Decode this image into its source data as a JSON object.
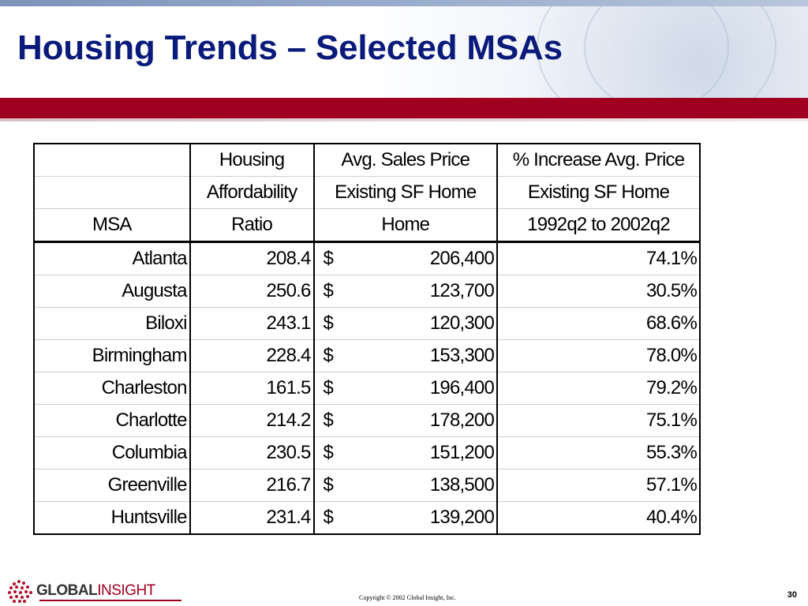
{
  "slide": {
    "title": "Housing Trends – Selected MSAs",
    "slide_number": "30",
    "copyright": "Copyright © 2002 Global Insight, Inc.",
    "logo": {
      "bold_text": "GLOBAL",
      "light_text": "INSIGHT"
    },
    "colors": {
      "title": "#0a1a7a",
      "band": "#a0001f"
    }
  },
  "table": {
    "header_rows": [
      [
        "",
        "Housing",
        "Avg. Sales Price",
        "% Increase Avg. Price"
      ],
      [
        "",
        "Affordability",
        "Existing SF Home",
        "Existing SF Home"
      ],
      [
        "MSA",
        "Ratio",
        "Home",
        "1992q2 to 2002q2"
      ]
    ],
    "rows": [
      {
        "msa": "Atlanta",
        "ratio": "208.4",
        "currency": "$",
        "price": "206,400",
        "increase": "74.1%"
      },
      {
        "msa": "Augusta",
        "ratio": "250.6",
        "currency": "$",
        "price": "123,700",
        "increase": "30.5%"
      },
      {
        "msa": "Biloxi",
        "ratio": "243.1",
        "currency": "$",
        "price": "120,300",
        "increase": "68.6%"
      },
      {
        "msa": "Birmingham",
        "ratio": "228.4",
        "currency": "$",
        "price": "153,300",
        "increase": "78.0%"
      },
      {
        "msa": "Charleston",
        "ratio": "161.5",
        "currency": "$",
        "price": "196,400",
        "increase": "79.2%"
      },
      {
        "msa": "Charlotte",
        "ratio": "214.2",
        "currency": "$",
        "price": "178,200",
        "increase": "75.1%"
      },
      {
        "msa": "Columbia",
        "ratio": "230.5",
        "currency": "$",
        "price": "151,200",
        "increase": "55.3%"
      },
      {
        "msa": "Greenville",
        "ratio": "216.7",
        "currency": "$",
        "price": "138,500",
        "increase": "57.1%"
      },
      {
        "msa": "Huntsville",
        "ratio": "231.4",
        "currency": "$",
        "price": "139,200",
        "increase": "40.4%"
      }
    ]
  }
}
